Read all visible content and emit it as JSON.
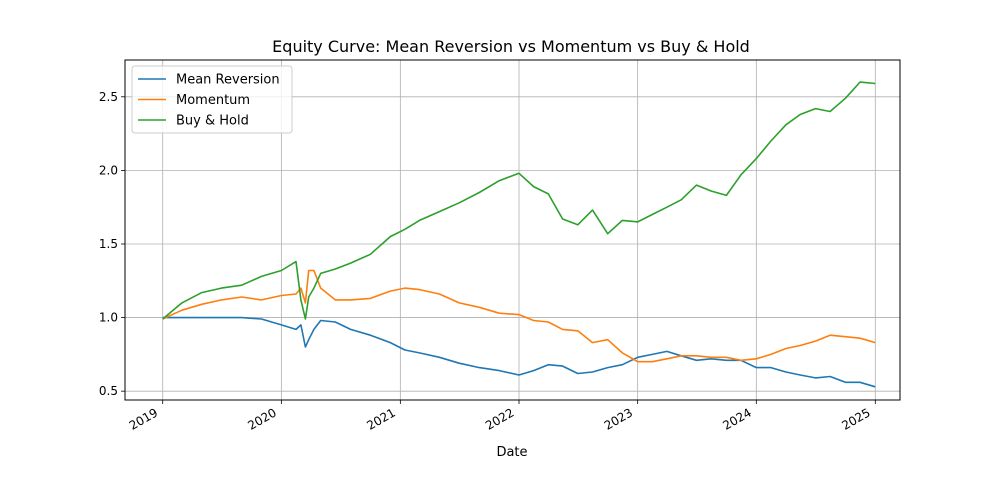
{
  "chart_data": {
    "type": "line",
    "title": "Equity Curve: Mean Reversion vs Momentum vs Buy & Hold",
    "xlabel": "Date",
    "ylabel": "",
    "xlim": [
      "2018-09-07",
      "2025-03-18"
    ],
    "ylim": [
      0.44,
      2.75
    ],
    "grid": true,
    "legend_position": "top-left",
    "x_ticks": [
      "2019-01-01",
      "2020-01-01",
      "2021-01-01",
      "2022-01-01",
      "2023-01-01",
      "2024-01-01",
      "2025-01-01"
    ],
    "x_tick_labels": [
      "2019",
      "2020",
      "2021",
      "2022",
      "2023",
      "2024",
      "2025"
    ],
    "y_ticks": [
      0.5,
      1.0,
      1.5,
      2.0,
      2.5
    ],
    "y_tick_labels": [
      "0.5",
      "1.0",
      "1.5",
      "2.0",
      "2.5"
    ],
    "x": [
      "2019-01-01",
      "2019-03-01",
      "2019-05-01",
      "2019-07-01",
      "2019-09-01",
      "2019-11-01",
      "2020-01-01",
      "2020-02-15",
      "2020-03-01",
      "2020-03-15",
      "2020-03-25",
      "2020-04-10",
      "2020-05-01",
      "2020-06-15",
      "2020-08-01",
      "2020-10-01",
      "2020-12-01",
      "2021-01-15",
      "2021-03-01",
      "2021-05-01",
      "2021-07-01",
      "2021-09-01",
      "2021-11-01",
      "2022-01-01",
      "2022-02-15",
      "2022-04-01",
      "2022-05-15",
      "2022-07-01",
      "2022-08-15",
      "2022-10-01",
      "2022-11-15",
      "2023-01-01",
      "2023-02-15",
      "2023-04-01",
      "2023-05-15",
      "2023-07-01",
      "2023-08-15",
      "2023-10-01",
      "2023-11-15",
      "2024-01-01",
      "2024-02-15",
      "2024-04-01",
      "2024-05-15",
      "2024-07-01",
      "2024-08-15",
      "2024-10-01",
      "2024-11-15",
      "2025-01-01"
    ],
    "series": [
      {
        "name": "Mean Reversion",
        "color": "#1f77b4",
        "values": [
          1.0,
          1.0,
          1.0,
          1.0,
          1.0,
          0.99,
          0.95,
          0.92,
          0.95,
          0.8,
          0.85,
          0.92,
          0.98,
          0.97,
          0.92,
          0.88,
          0.83,
          0.78,
          0.76,
          0.73,
          0.69,
          0.66,
          0.64,
          0.61,
          0.64,
          0.68,
          0.67,
          0.62,
          0.63,
          0.66,
          0.68,
          0.73,
          0.75,
          0.77,
          0.74,
          0.71,
          0.72,
          0.71,
          0.71,
          0.66,
          0.66,
          0.63,
          0.61,
          0.59,
          0.6,
          0.56,
          0.56,
          0.53
        ]
      },
      {
        "name": "Momentum",
        "color": "#ff7f0e",
        "values": [
          0.99,
          1.05,
          1.09,
          1.12,
          1.14,
          1.12,
          1.15,
          1.16,
          1.2,
          1.1,
          1.32,
          1.32,
          1.2,
          1.12,
          1.12,
          1.13,
          1.18,
          1.2,
          1.19,
          1.16,
          1.1,
          1.07,
          1.03,
          1.02,
          0.98,
          0.97,
          0.92,
          0.91,
          0.83,
          0.85,
          0.76,
          0.7,
          0.7,
          0.72,
          0.74,
          0.74,
          0.73,
          0.73,
          0.71,
          0.72,
          0.75,
          0.79,
          0.81,
          0.84,
          0.88,
          0.87,
          0.86,
          0.83
        ]
      },
      {
        "name": "Buy & Hold",
        "color": "#2ca02c",
        "values": [
          0.99,
          1.1,
          1.17,
          1.2,
          1.22,
          1.28,
          1.32,
          1.38,
          1.12,
          0.99,
          1.14,
          1.2,
          1.3,
          1.33,
          1.37,
          1.43,
          1.55,
          1.6,
          1.66,
          1.72,
          1.78,
          1.85,
          1.93,
          1.98,
          1.89,
          1.84,
          1.67,
          1.63,
          1.73,
          1.57,
          1.66,
          1.65,
          1.7,
          1.75,
          1.8,
          1.9,
          1.86,
          1.83,
          1.97,
          2.08,
          2.2,
          2.31,
          2.38,
          2.42,
          2.4,
          2.49,
          2.6,
          2.59
        ]
      }
    ]
  }
}
